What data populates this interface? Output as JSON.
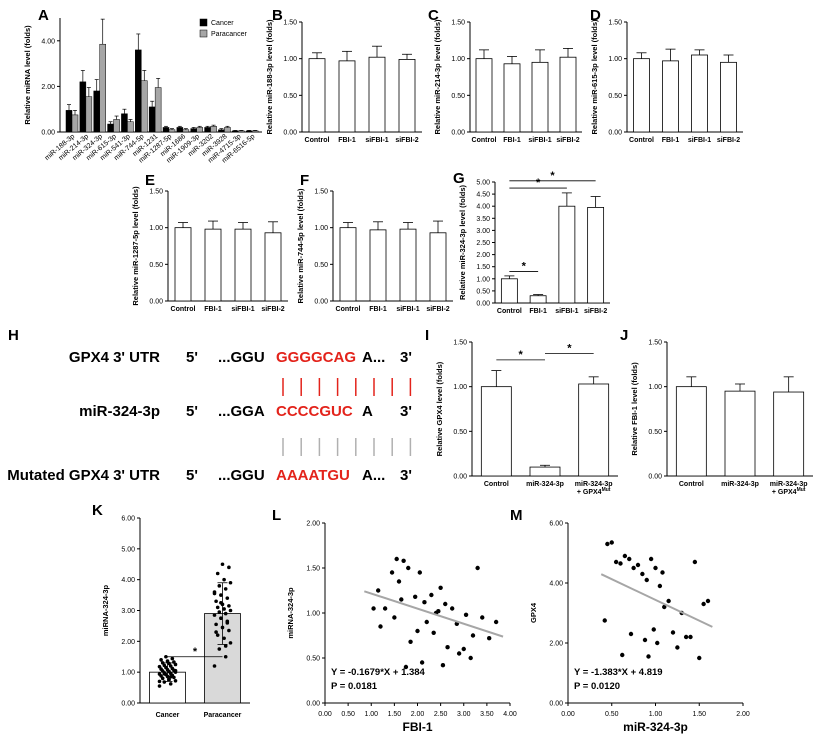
{
  "panel_letters": {
    "A": "A",
    "B": "B",
    "C": "C",
    "D": "D",
    "E": "E",
    "F": "F",
    "G": "G",
    "H": "H",
    "I": "I",
    "J": "J",
    "K": "K",
    "L": "L",
    "M": "M"
  },
  "sequence_panel": {
    "rows": [
      {
        "name": "GPX4 3' UTR",
        "five": "5'",
        "pre": "...GGU",
        "seed": "GGGGCAG",
        "post": "A...",
        "three": "3'",
        "seed_color": "#e3231b"
      },
      {
        "name": "miR-324-3p",
        "five": "5'",
        "pre": "...GGA",
        "seed": "CCCCGUC",
        "post": "A",
        "three": "3'",
        "seed_color": "#e3231b"
      },
      {
        "name": "Mutated GPX4 3' UTR",
        "five": "5'",
        "pre": "...GGU",
        "seed": "AAAATGU",
        "post": "A...",
        "three": "3'",
        "seed_color": "#e3231b"
      }
    ],
    "pairing_colors": [
      "#e3231b",
      "#b0b0b0"
    ]
  },
  "chart_data": [
    {
      "id": "A",
      "type": "bar",
      "ylabel": "Relative miRNA level (folds)",
      "ylim": [
        0,
        5
      ],
      "yticks": [
        0,
        2,
        4
      ],
      "ytick_labels": [
        "0.00",
        "2.00",
        "4.00"
      ],
      "legend": [
        "Cancer",
        "Paracancer"
      ],
      "colors": [
        "#000000",
        "#a6a6a6"
      ],
      "categories": [
        "miR-188-3p",
        "miR-214-3p",
        "miR-324-3p",
        "miR-615-3p",
        "miR-541-3p",
        "miR-744-5p",
        "miR-1231",
        "miR-1287-5p",
        "miR-1686",
        "miR-1909-3p",
        "miR-3202",
        "miR-3928",
        "miR-4715-3p",
        "miR-6516-5p"
      ],
      "series": [
        {
          "name": "Cancer",
          "values": [
            0.95,
            2.2,
            1.8,
            0.35,
            0.8,
            3.6,
            1.1,
            0.2,
            0.2,
            0.15,
            0.2,
            0.1,
            0.05,
            0.05
          ],
          "errors": [
            0.25,
            0.5,
            0.5,
            0.1,
            0.2,
            0.7,
            0.25,
            0.05,
            0.05,
            0.05,
            0.05,
            0.05,
            0.02,
            0.02
          ]
        },
        {
          "name": "Paracancer",
          "values": [
            0.75,
            1.55,
            3.85,
            0.55,
            0.45,
            2.25,
            1.95,
            0.1,
            0.1,
            0.2,
            0.25,
            0.2,
            0.05,
            0.05
          ],
          "errors": [
            0.2,
            0.4,
            1.1,
            0.15,
            0.1,
            0.45,
            0.4,
            0.05,
            0.05,
            0.05,
            0.05,
            0.05,
            0.02,
            0.02
          ]
        }
      ]
    },
    {
      "id": "B",
      "type": "bar",
      "ylabel": "Relative miR-188-3p level (folds)",
      "ylim": [
        0,
        1.5
      ],
      "yticks": [
        0,
        0.5,
        1,
        1.5
      ],
      "ytick_labels": [
        "0.00",
        "0.50",
        "1.00",
        "1.50"
      ],
      "categories": [
        "Control",
        "FBI-1",
        "siFBI-1",
        "siFBI-2"
      ],
      "values": [
        1.0,
        0.97,
        1.02,
        0.99
      ],
      "errors": [
        0.08,
        0.13,
        0.15,
        0.07
      ],
      "sig": []
    },
    {
      "id": "C",
      "type": "bar",
      "ylabel": "Relative miR-214-3p level (folds)",
      "ylim": [
        0,
        1.5
      ],
      "yticks": [
        0,
        0.5,
        1,
        1.5
      ],
      "ytick_labels": [
        "0.00",
        "0.50",
        "1.00",
        "1.50"
      ],
      "categories": [
        "Control",
        "FBI-1",
        "siFBI-1",
        "siFBI-2"
      ],
      "values": [
        1.0,
        0.93,
        0.95,
        1.02
      ],
      "errors": [
        0.12,
        0.1,
        0.17,
        0.12
      ],
      "sig": []
    },
    {
      "id": "D",
      "type": "bar",
      "ylabel": "Relative miR-615-3p level (folds)",
      "ylim": [
        0,
        1.5
      ],
      "yticks": [
        0,
        0.5,
        1,
        1.5
      ],
      "ytick_labels": [
        "0.00",
        "0.50",
        "1.00",
        "1.50"
      ],
      "categories": [
        "Control",
        "FBI-1",
        "siFBI-1",
        "siFBI-2"
      ],
      "values": [
        1.0,
        0.97,
        1.05,
        0.95
      ],
      "errors": [
        0.08,
        0.16,
        0.07,
        0.1
      ],
      "sig": []
    },
    {
      "id": "E",
      "type": "bar",
      "ylabel": "Relative miR-1287-5p level (folds)",
      "ylim": [
        0,
        1.5
      ],
      "yticks": [
        0,
        0.5,
        1,
        1.5
      ],
      "ytick_labels": [
        "0.00",
        "0.50",
        "1.00",
        "1.50"
      ],
      "categories": [
        "Control",
        "FBI-1",
        "siFBI-1",
        "siFBI-2"
      ],
      "values": [
        1.0,
        0.98,
        0.98,
        0.93
      ],
      "errors": [
        0.07,
        0.11,
        0.09,
        0.15
      ],
      "sig": []
    },
    {
      "id": "F",
      "type": "bar",
      "ylabel": "Relative miR-744-5p level (folds)",
      "ylim": [
        0,
        1.5
      ],
      "yticks": [
        0,
        0.5,
        1,
        1.5
      ],
      "ytick_labels": [
        "0.00",
        "0.50",
        "1.00",
        "1.50"
      ],
      "categories": [
        "Control",
        "FBI-1",
        "siFBI-1",
        "siFBI-2"
      ],
      "values": [
        1.0,
        0.97,
        0.98,
        0.93
      ],
      "errors": [
        0.07,
        0.11,
        0.09,
        0.16
      ],
      "sig": []
    },
    {
      "id": "G",
      "type": "bar",
      "ylabel": "Relative miR-324-3p level (folds)",
      "ylim": [
        0,
        5
      ],
      "yticks": [
        0,
        0.5,
        1,
        1.5,
        2,
        2.5,
        3,
        3.5,
        4,
        4.5,
        5
      ],
      "ytick_labels": [
        "0.00",
        "0.50",
        "1.00",
        "1.50",
        "2.00",
        "2.50",
        "3.00",
        "3.50",
        "4.00",
        "4.50",
        "5.00"
      ],
      "categories": [
        "Control",
        "FBI-1",
        "siFBI-1",
        "siFBI-2"
      ],
      "values": [
        1.0,
        0.3,
        4.0,
        3.95
      ],
      "errors": [
        0.12,
        0.05,
        0.55,
        0.45
      ],
      "sig": [
        {
          "from": 0,
          "to": 1,
          "y": 1.3,
          "label": "*"
        },
        {
          "from": 0,
          "to": 2,
          "y": 4.75,
          "label": "*"
        },
        {
          "from": 0,
          "to": 3,
          "y": 5.05,
          "label": "*"
        }
      ]
    },
    {
      "id": "I",
      "type": "bar",
      "ylabel": "Relative GPX4 level (folds)",
      "ylim": [
        0,
        1.5
      ],
      "yticks": [
        0,
        0.5,
        1,
        1.5
      ],
      "ytick_labels": [
        "0.00",
        "0.50",
        "1.00",
        "1.50"
      ],
      "categories": [
        "Control",
        "miR-324-3p",
        "miR-324-3p\n+ GPX4Mut"
      ],
      "values": [
        1.0,
        0.1,
        1.03
      ],
      "errors": [
        0.18,
        0.02,
        0.08
      ],
      "sig": [
        {
          "from": 0,
          "to": 1,
          "y": 1.3,
          "label": "*"
        },
        {
          "from": 1,
          "to": 2,
          "y": 1.37,
          "label": "*"
        }
      ]
    },
    {
      "id": "J",
      "type": "bar",
      "ylabel": "Relative FBI-1 level (folds)",
      "ylim": [
        0,
        1.5
      ],
      "yticks": [
        0,
        0.5,
        1,
        1.5
      ],
      "ytick_labels": [
        "0.00",
        "0.50",
        "1.00",
        "1.50"
      ],
      "categories": [
        "Control",
        "miR-324-3p",
        "miR-324-3p\n+ GPX4Mut"
      ],
      "values": [
        1.0,
        0.95,
        0.94
      ],
      "errors": [
        0.11,
        0.08,
        0.17
      ],
      "sig": []
    },
    {
      "id": "K",
      "type": "bar",
      "ylabel": "miRNA-324-3p",
      "ylim": [
        0,
        6
      ],
      "yticks": [
        0,
        1,
        2,
        3,
        4,
        5,
        6
      ],
      "ytick_labels": [
        "0.00",
        "1.00",
        "2.00",
        "3.00",
        "4.00",
        "5.00",
        "6.00"
      ],
      "categories": [
        "Cancer",
        "Paracancer"
      ],
      "values": [
        1.0,
        2.9
      ],
      "errors": [
        0.3,
        1.0
      ],
      "colors": [
        "#ffffff",
        "#d9d9d9"
      ],
      "sig": [
        {
          "from": 0,
          "to": 1,
          "y": 1.5,
          "label": "*"
        }
      ],
      "points": [
        [
          0.55,
          0.62,
          0.68,
          0.72,
          0.76,
          0.8,
          0.83,
          0.86,
          0.88,
          0.9,
          0.92,
          0.94,
          0.96,
          0.98,
          1.0,
          1.02,
          1.04,
          1.06,
          1.08,
          1.1,
          1.12,
          1.15,
          1.18,
          1.2,
          1.22,
          1.25,
          1.28,
          1.3,
          1.33,
          1.36,
          1.4,
          1.44,
          1.5,
          0.7,
          0.85,
          0.95,
          1.05
        ],
        [
          1.2,
          1.5,
          1.75,
          1.95,
          2.1,
          2.2,
          2.35,
          2.45,
          2.55,
          2.65,
          2.75,
          2.85,
          2.9,
          2.95,
          3.0,
          3.05,
          3.1,
          3.15,
          3.2,
          3.3,
          3.4,
          3.5,
          3.6,
          3.7,
          3.8,
          3.9,
          4.0,
          4.2,
          4.4,
          4.5,
          2.3,
          2.6,
          3.25,
          3.55,
          1.85
        ]
      ]
    },
    {
      "id": "L",
      "type": "scatter",
      "xlabel": "FBI-1",
      "ylabel": "miRNA-324-3p",
      "xlim": [
        0,
        4
      ],
      "ylim": [
        0,
        2
      ],
      "xticks": [
        0,
        0.5,
        1,
        1.5,
        2,
        2.5,
        3,
        3.5,
        4
      ],
      "xtick_labels": [
        "0.00",
        "0.50",
        "1.00",
        "1.50",
        "2.00",
        "2.50",
        "3.00",
        "3.50",
        "4.00"
      ],
      "yticks": [
        0,
        0.5,
        1,
        1.5,
        2
      ],
      "ytick_labels": [
        "0.00",
        "0.50",
        "1.00",
        "1.50",
        "2.00"
      ],
      "x": [
        1.55,
        1.7,
        1.8,
        1.45,
        2.05,
        1.6,
        2.5,
        1.15,
        2.3,
        1.95,
        2.15,
        2.6,
        2.75,
        1.3,
        2.45,
        3.05,
        3.4,
        3.7,
        1.5,
        2.2,
        2.85,
        1.2,
        2.0,
        2.35,
        3.2,
        3.55,
        1.05,
        1.85,
        2.65,
        3.0,
        3.15,
        2.1,
        2.55,
        1.75,
        3.3,
        2.9,
        1.65,
        2.4
      ],
      "y": [
        1.6,
        1.58,
        1.5,
        1.45,
        1.45,
        1.35,
        1.28,
        1.25,
        1.2,
        1.18,
        1.12,
        1.1,
        1.05,
        1.05,
        1.02,
        0.98,
        0.95,
        0.9,
        0.95,
        0.9,
        0.88,
        0.85,
        0.8,
        0.78,
        0.75,
        0.72,
        1.05,
        0.68,
        0.62,
        0.6,
        0.5,
        0.45,
        0.42,
        0.4,
        1.5,
        0.55,
        1.15,
        1.0
      ],
      "fit": {
        "slope": -0.1679,
        "intercept": 1.384,
        "x_range": [
          0.85,
          3.85
        ]
      },
      "equation": "Y = -0.1679*X + 1.384",
      "pvalue": "P = 0.0181"
    },
    {
      "id": "M",
      "type": "scatter",
      "xlabel": "miR-324-3p",
      "ylabel": "GPX4",
      "xlim": [
        0,
        2
      ],
      "ylim": [
        0,
        6
      ],
      "xticks": [
        0,
        0.5,
        1,
        1.5,
        2
      ],
      "xtick_labels": [
        "0.00",
        "0.50",
        "1.00",
        "1.50",
        "2.00"
      ],
      "yticks": [
        0,
        2,
        4,
        6
      ],
      "ytick_labels": [
        "0.00",
        "2.00",
        "4.00",
        "6.00"
      ],
      "x": [
        0.45,
        0.5,
        0.65,
        0.7,
        0.6,
        0.75,
        0.95,
        1.0,
        0.85,
        0.9,
        1.05,
        1.15,
        1.3,
        0.55,
        0.8,
        1.1,
        1.45,
        1.55,
        1.6,
        0.42,
        0.98,
        1.2,
        1.35,
        0.72,
        0.88,
        1.02,
        1.25,
        1.5,
        0.62,
        0.92,
        1.4,
        1.08
      ],
      "y": [
        5.3,
        5.35,
        4.9,
        4.8,
        4.65,
        4.5,
        4.8,
        4.5,
        4.3,
        4.1,
        3.9,
        3.4,
        3.0,
        4.7,
        4.6,
        3.2,
        4.7,
        3.3,
        3.4,
        2.75,
        2.45,
        2.35,
        2.2,
        2.3,
        2.1,
        2.0,
        1.85,
        1.5,
        1.6,
        1.55,
        2.2,
        4.35
      ],
      "fit": {
        "slope": -1.383,
        "intercept": 4.819,
        "x_range": [
          0.38,
          1.65
        ]
      },
      "equation": "Y = -1.383*X + 4.819",
      "pvalue": "P =  0.0120"
    }
  ]
}
